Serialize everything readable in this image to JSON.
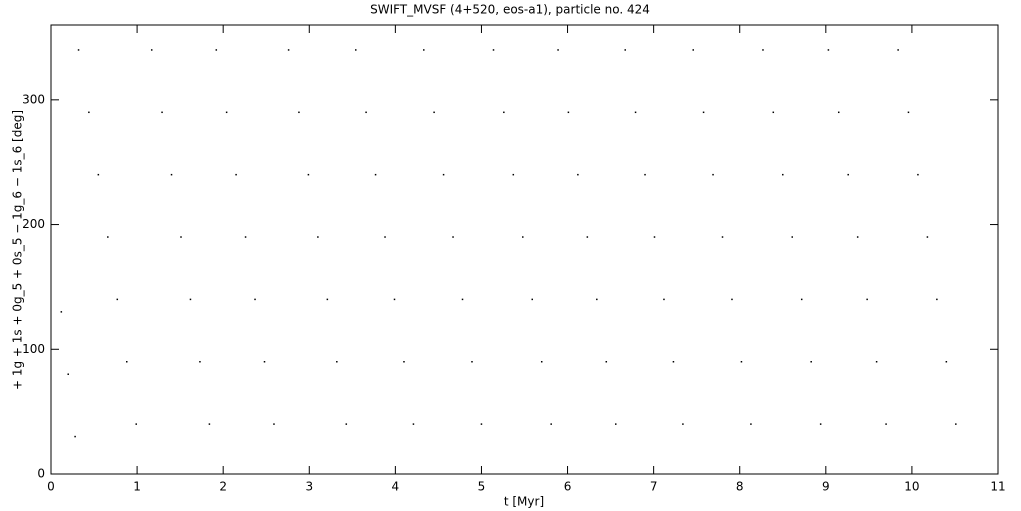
{
  "chart_data": {
    "type": "scatter",
    "title": "SWIFT_MVSF (4+520, eos-a1), particle no. 424",
    "x_label": "t [Myr]",
    "y_label": "+ 1g + 1s + 0g_5 + 0s_5 − 1g_6 − 1s_6 [deg]",
    "xlim": [
      0,
      11
    ],
    "xticks": [
      0,
      1,
      2,
      3,
      4,
      5,
      6,
      7,
      8,
      9,
      10,
      11
    ],
    "ylim": [
      0,
      360
    ],
    "yticks": [
      0,
      100,
      200,
      300
    ],
    "series": [
      {
        "color": "#000000",
        "x": [
          0.12,
          0.2,
          0.28,
          0.32,
          0.44,
          0.55,
          0.66,
          0.77,
          0.88,
          0.99,
          1.17,
          1.29,
          1.4,
          1.51,
          1.62,
          1.73,
          1.84,
          1.92,
          2.04,
          2.15,
          2.26,
          2.37,
          2.48,
          2.59,
          2.76,
          2.88,
          2.99,
          3.1,
          3.21,
          3.32,
          3.43,
          3.54,
          3.66,
          3.77,
          3.88,
          3.99,
          4.1,
          4.21,
          4.33,
          4.45,
          4.56,
          4.67,
          4.78,
          4.89,
          5.0,
          5.14,
          5.26,
          5.37,
          5.48,
          5.59,
          5.7,
          5.81,
          5.89,
          6.01,
          6.12,
          6.23,
          6.34,
          6.45,
          6.56,
          6.67,
          6.79,
          6.9,
          7.01,
          7.12,
          7.23,
          7.34,
          7.46,
          7.58,
          7.69,
          7.8,
          7.91,
          8.02,
          8.13,
          8.27,
          8.39,
          8.5,
          8.61,
          8.72,
          8.83,
          8.94,
          9.03,
          9.15,
          9.26,
          9.37,
          9.48,
          9.59,
          9.7,
          9.84,
          9.96,
          10.07,
          10.18,
          10.29,
          10.4,
          10.51
        ],
        "values": [
          130,
          80,
          30,
          340,
          290,
          240,
          190,
          140,
          90,
          40,
          340,
          290,
          240,
          190,
          140,
          90,
          40,
          340,
          290,
          240,
          190,
          140,
          90,
          40,
          340,
          290,
          240,
          190,
          140,
          90,
          40,
          340,
          290,
          240,
          190,
          140,
          90,
          40,
          340,
          290,
          240,
          190,
          140,
          90,
          40,
          340,
          290,
          240,
          190,
          140,
          90,
          40,
          340,
          290,
          240,
          190,
          140,
          90,
          40,
          340,
          290,
          240,
          190,
          140,
          90,
          40,
          340,
          290,
          240,
          190,
          140,
          90,
          40,
          340,
          290,
          240,
          190,
          140,
          90,
          40,
          340,
          290,
          240,
          190,
          140,
          90,
          40,
          340,
          290,
          240,
          190,
          140,
          90,
          40
        ]
      }
    ]
  }
}
